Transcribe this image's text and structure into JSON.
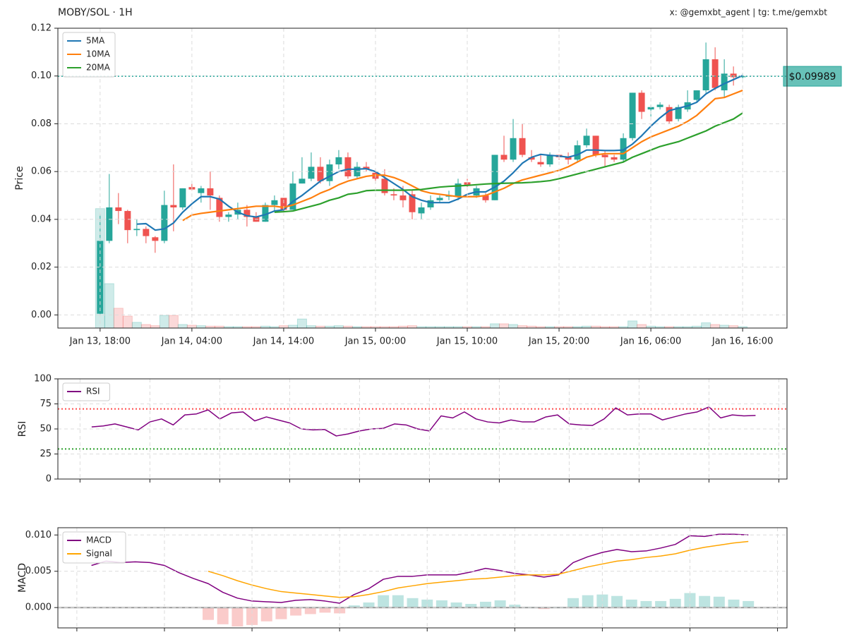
{
  "chart_data": [
    {
      "type": "candlestick",
      "title": "MOBY/SOL · 1H",
      "annotation": "x: @gemxbt_agent | tg: t.me/gemxbt",
      "ylabel": "Price",
      "x": [
        "Jan 13, 18:00",
        "Jan 13, 19:00",
        "Jan 13, 20:00",
        "Jan 13, 21:00",
        "Jan 13, 22:00",
        "Jan 13, 23:00",
        "Jan 14, 00:00",
        "Jan 14, 01:00",
        "Jan 14, 02:00",
        "Jan 14, 03:00",
        "Jan 14, 04:00",
        "Jan 14, 05:00",
        "Jan 14, 06:00",
        "Jan 14, 07:00",
        "Jan 14, 08:00",
        "Jan 14, 09:00",
        "Jan 14, 10:00",
        "Jan 14, 11:00",
        "Jan 14, 12:00",
        "Jan 14, 13:00",
        "Jan 14, 14:00",
        "Jan 14, 15:00",
        "Jan 14, 16:00",
        "Jan 14, 17:00",
        "Jan 14, 18:00",
        "Jan 14, 19:00",
        "Jan 14, 20:00",
        "Jan 14, 21:00",
        "Jan 14, 22:00",
        "Jan 14, 23:00",
        "Jan 15, 00:00",
        "Jan 15, 01:00",
        "Jan 15, 02:00",
        "Jan 15, 03:00",
        "Jan 15, 04:00",
        "Jan 15, 05:00",
        "Jan 15, 06:00",
        "Jan 15, 07:00",
        "Jan 15, 08:00",
        "Jan 15, 09:00",
        "Jan 15, 10:00",
        "Jan 15, 11:00",
        "Jan 15, 12:00",
        "Jan 15, 13:00",
        "Jan 15, 14:00",
        "Jan 15, 15:00",
        "Jan 15, 16:00",
        "Jan 15, 17:00",
        "Jan 15, 18:00",
        "Jan 15, 19:00",
        "Jan 15, 20:00",
        "Jan 15, 21:00",
        "Jan 15, 22:00",
        "Jan 15, 23:00",
        "Jan 16, 00:00",
        "Jan 16, 01:00",
        "Jan 16, 02:00",
        "Jan 16, 03:00",
        "Jan 16, 04:00",
        "Jan 16, 05:00",
        "Jan 16, 06:00",
        "Jan 16, 07:00",
        "Jan 16, 08:00",
        "Jan 16, 09:00",
        "Jan 16, 10:00",
        "Jan 16, 11:00",
        "Jan 16, 12:00",
        "Jan 16, 13:00",
        "Jan 16, 14:00",
        "Jan 16, 15:00",
        "Jan 16, 16:00"
      ],
      "open": [
        0.0005,
        0.031,
        0.045,
        0.0435,
        0.0355,
        0.036,
        0.0325,
        0.031,
        0.046,
        0.045,
        0.0535,
        0.051,
        0.053,
        0.049,
        0.041,
        0.042,
        0.044,
        0.041,
        0.039,
        0.046,
        0.049,
        0.044,
        0.055,
        0.057,
        0.062,
        0.056,
        0.063,
        0.066,
        0.058,
        0.062,
        0.0595,
        0.057,
        0.0505,
        0.05,
        0.0505,
        0.0425,
        0.045,
        0.048,
        0.0495,
        0.0495,
        0.0555,
        0.05,
        0.05,
        0.048,
        0.067,
        0.065,
        0.074,
        0.066,
        0.064,
        0.063,
        0.067,
        0.066,
        0.065,
        0.071,
        0.075,
        0.067,
        0.066,
        0.065,
        0.074,
        0.093,
        0.086,
        0.087,
        0.087,
        0.082,
        0.086,
        0.09,
        0.094,
        0.107,
        0.094,
        0.101,
        0.0995
      ],
      "high": [
        0.042,
        0.059,
        0.051,
        0.044,
        0.04,
        0.037,
        0.033,
        0.052,
        0.063,
        0.053,
        0.055,
        0.054,
        0.06,
        0.05,
        0.043,
        0.047,
        0.046,
        0.043,
        0.047,
        0.05,
        0.049,
        0.06,
        0.066,
        0.068,
        0.066,
        0.065,
        0.069,
        0.068,
        0.064,
        0.064,
        0.061,
        0.061,
        0.053,
        0.054,
        0.052,
        0.047,
        0.05,
        0.05,
        0.052,
        0.057,
        0.057,
        0.054,
        0.051,
        0.067,
        0.075,
        0.082,
        0.08,
        0.069,
        0.067,
        0.068,
        0.067,
        0.068,
        0.073,
        0.078,
        0.075,
        0.069,
        0.067,
        0.076,
        0.093,
        0.094,
        0.088,
        0.089,
        0.088,
        0.088,
        0.094,
        0.094,
        0.114,
        0.112,
        0.107,
        0.104,
        0.101
      ],
      "low": [
        0.0,
        0.03,
        0.038,
        0.03,
        0.033,
        0.03,
        0.026,
        0.03,
        0.035,
        0.044,
        0.052,
        0.047,
        0.044,
        0.039,
        0.039,
        0.04,
        0.037,
        0.039,
        0.039,
        0.043,
        0.043,
        0.044,
        0.055,
        0.056,
        0.055,
        0.054,
        0.061,
        0.057,
        0.057,
        0.06,
        0.055,
        0.05,
        0.048,
        0.045,
        0.04,
        0.04,
        0.044,
        0.047,
        0.048,
        0.048,
        0.053,
        0.049,
        0.047,
        0.048,
        0.064,
        0.064,
        0.066,
        0.064,
        0.062,
        0.062,
        0.065,
        0.063,
        0.064,
        0.07,
        0.066,
        0.062,
        0.064,
        0.064,
        0.073,
        0.082,
        0.083,
        0.086,
        0.08,
        0.081,
        0.085,
        0.089,
        0.093,
        0.094,
        0.091,
        0.096,
        0.099
      ],
      "close": [
        0.031,
        0.045,
        0.0435,
        0.0355,
        0.036,
        0.033,
        0.031,
        0.046,
        0.045,
        0.053,
        0.0525,
        0.053,
        0.05,
        0.041,
        0.042,
        0.044,
        0.041,
        0.039,
        0.046,
        0.048,
        0.044,
        0.055,
        0.057,
        0.062,
        0.056,
        0.063,
        0.066,
        0.058,
        0.062,
        0.061,
        0.057,
        0.051,
        0.05,
        0.048,
        0.043,
        0.045,
        0.048,
        0.049,
        0.05,
        0.055,
        0.0545,
        0.053,
        0.048,
        0.067,
        0.065,
        0.074,
        0.067,
        0.065,
        0.063,
        0.067,
        0.066,
        0.065,
        0.071,
        0.075,
        0.067,
        0.066,
        0.065,
        0.074,
        0.093,
        0.085,
        0.087,
        0.088,
        0.081,
        0.087,
        0.089,
        0.094,
        0.107,
        0.095,
        0.101,
        0.0995,
        0.09989
      ],
      "volume": [
        0.05,
        0.0186,
        0.0083,
        0.005,
        0.0024,
        0.0015,
        0.001,
        0.0053,
        0.0053,
        0.0015,
        0.0012,
        0.001,
        0.0008,
        0.0008,
        0.0006,
        0.0006,
        0.0006,
        0.0006,
        0.0008,
        0.0006,
        0.001,
        0.0012,
        0.0038,
        0.001,
        0.0008,
        0.0008,
        0.001,
        0.0008,
        0.0006,
        0.0006,
        0.0006,
        0.0006,
        0.0006,
        0.0008,
        0.001,
        0.0006,
        0.0006,
        0.0006,
        0.0006,
        0.0006,
        0.0006,
        0.0006,
        0.0006,
        0.0018,
        0.0018,
        0.0015,
        0.001,
        0.0008,
        0.0006,
        0.0006,
        0.0006,
        0.0006,
        0.0006,
        0.0008,
        0.0008,
        0.0006,
        0.0006,
        0.0006,
        0.003,
        0.0015,
        0.0008,
        0.0006,
        0.0006,
        0.0006,
        0.0006,
        0.0008,
        0.0022,
        0.0015,
        0.0012,
        0.001,
        0.0006
      ],
      "up_color": "#26a69a",
      "down_color": "#ef5350",
      "volume_up_color": "rgba(38,166,154,0.22)",
      "volume_down_color": "rgba(239,83,80,0.22)",
      "series": [
        {
          "name": "5MA",
          "color": "#1f77b4",
          "values": [
            null,
            null,
            null,
            null,
            0.038,
            0.0382,
            0.0355,
            0.036,
            0.0385,
            0.043,
            0.0465,
            0.0495,
            0.0495,
            0.0485,
            0.0455,
            0.043,
            0.0415,
            0.041,
            0.042,
            0.0435,
            0.044,
            0.0475,
            0.05,
            0.053,
            0.056,
            0.058,
            0.06,
            0.061,
            0.061,
            0.0612,
            0.06,
            0.0575,
            0.055,
            0.0525,
            0.0495,
            0.048,
            0.047,
            0.047,
            0.047,
            0.0485,
            0.0505,
            0.0515,
            0.0515,
            0.0535,
            0.056,
            0.0595,
            0.0635,
            0.066,
            0.0672,
            0.0668,
            0.0665,
            0.066,
            0.067,
            0.069,
            0.069,
            0.0688,
            0.0688,
            0.069,
            0.0715,
            0.075,
            0.079,
            0.0825,
            0.0855,
            0.0865,
            0.0875,
            0.089,
            0.0925,
            0.0948,
            0.0968,
            0.0985,
            0.1002
          ]
        },
        {
          "name": "10MA",
          "color": "#ff7f0e",
          "values": [
            null,
            null,
            null,
            null,
            null,
            null,
            null,
            null,
            null,
            0.0395,
            0.0418,
            0.0425,
            0.043,
            0.0435,
            0.044,
            0.0445,
            0.045,
            0.0455,
            0.0455,
            0.0455,
            0.045,
            0.046,
            0.0475,
            0.049,
            0.051,
            0.0525,
            0.0545,
            0.056,
            0.057,
            0.058,
            0.0585,
            0.0585,
            0.0575,
            0.056,
            0.054,
            0.052,
            0.051,
            0.0505,
            0.05,
            0.0495,
            0.0495,
            0.0495,
            0.05,
            0.0515,
            0.053,
            0.055,
            0.0565,
            0.0575,
            0.0585,
            0.0595,
            0.0605,
            0.062,
            0.064,
            0.066,
            0.067,
            0.0675,
            0.0675,
            0.0675,
            0.07,
            0.0725,
            0.0745,
            0.076,
            0.0775,
            0.079,
            0.081,
            0.0835,
            0.087,
            0.0905,
            0.091,
            0.0925,
            0.094
          ]
        },
        {
          "name": "20MA",
          "color": "#2ca02c",
          "values": [
            null,
            null,
            null,
            null,
            null,
            null,
            null,
            null,
            null,
            null,
            null,
            null,
            null,
            null,
            null,
            null,
            null,
            null,
            null,
            0.043,
            0.0432,
            0.0435,
            0.0445,
            0.0455,
            0.0465,
            0.048,
            0.049,
            0.0505,
            0.051,
            0.052,
            0.0522,
            0.0522,
            0.0522,
            0.0522,
            0.0523,
            0.0525,
            0.053,
            0.0535,
            0.0538,
            0.054,
            0.0542,
            0.0545,
            0.0548,
            0.055,
            0.0551,
            0.0552,
            0.0553,
            0.0555,
            0.0558,
            0.0562,
            0.057,
            0.058,
            0.059,
            0.06,
            0.061,
            0.062,
            0.063,
            0.064,
            0.066,
            0.0675,
            0.069,
            0.0705,
            0.0715,
            0.0725,
            0.074,
            0.0755,
            0.077,
            0.079,
            0.0805,
            0.082,
            0.0845
          ]
        }
      ],
      "last_price": {
        "value": 0.09989,
        "label": "$0.09989",
        "color": "#26a69a"
      },
      "xlim": [
        "Jan 13, 13:24",
        "Jan 16, 20:50"
      ],
      "xticks": [
        "Jan 13, 18:00",
        "Jan 14, 04:00",
        "Jan 14, 14:00",
        "Jan 15, 00:00",
        "Jan 15, 10:00",
        "Jan 15, 20:00",
        "Jan 16, 06:00",
        "Jan 16, 16:00"
      ],
      "ylim": [
        -0.0055,
        0.12
      ],
      "yticks": [
        {
          "value": 0,
          "label": "0.00"
        },
        0.02,
        0.04,
        0.06,
        0.08,
        {
          "value": 0.1,
          "label": "0.10"
        },
        0.12
      ],
      "grid": true,
      "legend": "upper-left"
    },
    {
      "type": "rsi",
      "ylabel": "RSI",
      "series": [
        {
          "name": "RSI",
          "color": "#800080",
          "values": [
            52,
            53,
            55,
            52,
            49,
            57,
            60,
            54,
            64,
            65,
            69,
            60,
            66,
            67,
            58,
            62,
            59,
            56,
            50,
            49,
            49.5,
            43,
            45,
            48,
            50,
            50.5,
            55,
            54,
            50,
            48,
            63,
            61,
            67,
            60,
            57,
            56,
            59,
            57,
            57,
            62,
            64,
            55,
            54,
            53.5,
            60,
            71,
            64,
            65,
            65,
            59,
            62,
            65,
            67,
            72,
            61,
            64,
            63,
            63.5
          ]
        }
      ],
      "levels": [
        {
          "value": 70,
          "color": "#ff4d4d"
        },
        {
          "value": 30,
          "color": "#2ca02c"
        }
      ],
      "xlim": [
        -2.9,
        59.7
      ],
      "xticks": [
        -1,
        5,
        11,
        17,
        23,
        29,
        35,
        41,
        47,
        53,
        59
      ],
      "ylim": [
        0,
        100
      ],
      "yticks": [
        0,
        25,
        50,
        75,
        100
      ],
      "grid": true,
      "legend": "upper-left"
    },
    {
      "type": "macd",
      "ylabel": "MACD",
      "series": [
        {
          "name": "MACD",
          "color": "#800080",
          "values": [
            0.0058,
            0.0064,
            0.0062,
            0.0063,
            0.0062,
            0.0058,
            0.0048,
            0.004,
            0.0033,
            0.0021,
            0.0013,
            0.0009,
            0.0008,
            0.0007,
            0.001,
            0.0011,
            0.0009,
            0.0006,
            0.0018,
            0.0026,
            0.0039,
            0.0043,
            0.0043,
            0.0045,
            0.0045,
            0.0045,
            0.0049,
            0.0054,
            0.0051,
            0.0047,
            0.0045,
            0.0042,
            0.0045,
            0.0062,
            0.007,
            0.0076,
            0.008,
            0.0077,
            0.0078,
            0.0082,
            0.0087,
            0.0099,
            0.0098,
            0.0101,
            0.0101,
            0.01
          ]
        },
        {
          "name": "Signal",
          "color": "#ffa500",
          "values": [
            null,
            null,
            null,
            null,
            null,
            null,
            null,
            null,
            0.005,
            0.0044,
            0.0037,
            0.0031,
            0.0026,
            0.0022,
            0.002,
            0.0018,
            0.0016,
            0.0014,
            0.0015,
            0.0018,
            0.0022,
            0.0027,
            0.003,
            0.0033,
            0.0035,
            0.0037,
            0.0039,
            0.004,
            0.0042,
            0.0044,
            0.0045,
            0.0045,
            0.0046,
            0.0051,
            0.0056,
            0.006,
            0.0064,
            0.0066,
            0.0069,
            0.0071,
            0.0074,
            0.0079,
            0.0083,
            0.0086,
            0.0089,
            0.0091
          ]
        }
      ],
      "histogram": {
        "values": [
          null,
          null,
          null,
          null,
          null,
          null,
          null,
          null,
          -0.0017,
          -0.0023,
          -0.0026,
          -0.0024,
          -0.0019,
          -0.0016,
          -0.0011,
          -0.0009,
          -0.0007,
          -0.0008,
          0.0003,
          0.0007,
          0.0017,
          0.0017,
          0.0013,
          0.0011,
          0.001,
          0.0007,
          0.0005,
          0.0008,
          0.001,
          0.0004,
          0.0001,
          -0.0002,
          0.0001,
          0.0013,
          0.0017,
          0.0018,
          0.0016,
          0.0011,
          0.0009,
          0.0009,
          0.0012,
          0.002,
          0.0016,
          0.0015,
          0.0011,
          0.0009
        ],
        "positive_color": "rgba(38,166,154,0.3)",
        "negative_color": "rgba(239,83,80,0.3)"
      },
      "xlim": [
        -2.3,
        47.65
      ],
      "xticks": [
        -1,
        5,
        11,
        17,
        23,
        29,
        35,
        41,
        47
      ],
      "ylim": [
        -0.0028,
        0.011
      ],
      "yticks": [
        {
          "value": 0,
          "label": "0.000"
        },
        0.005,
        {
          "value": 0.01,
          "label": "0.010"
        }
      ],
      "grid": true,
      "legend": "upper-left"
    }
  ]
}
